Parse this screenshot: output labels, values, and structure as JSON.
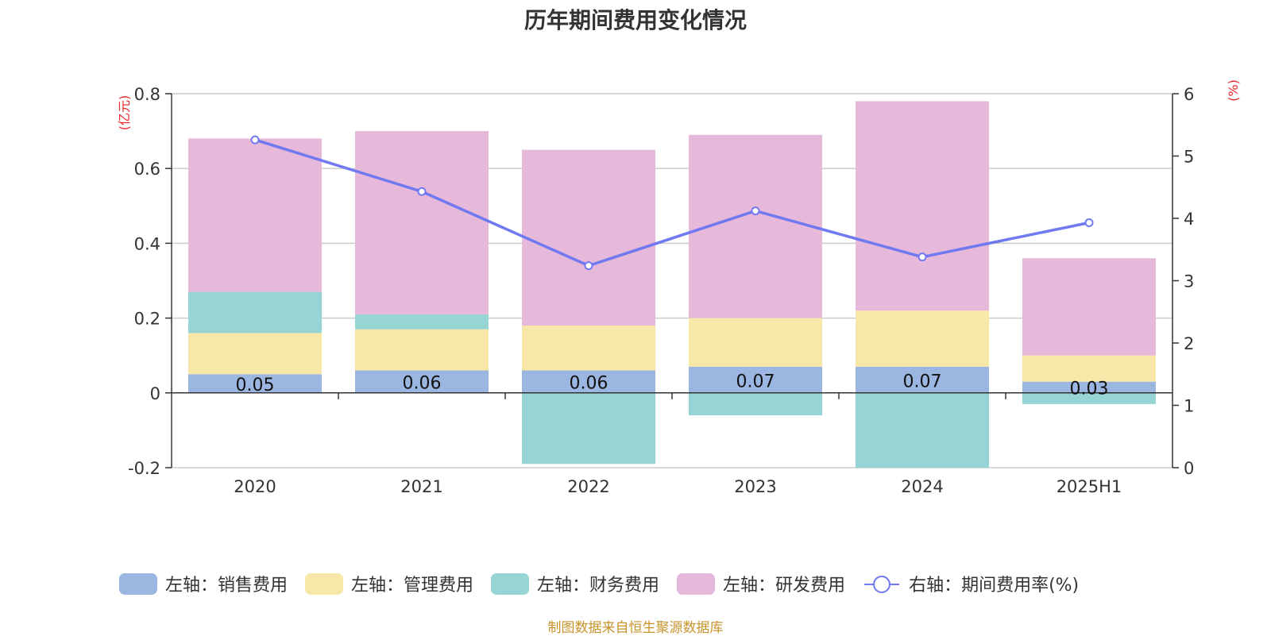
{
  "chart_data": {
    "type": "bar",
    "title": "历年期间费用变化情况",
    "categories": [
      "2020",
      "2021",
      "2022",
      "2023",
      "2024",
      "2025H1"
    ],
    "left_axis": {
      "unit": "(亿元)",
      "ylim": [
        -0.2,
        0.8
      ],
      "ticks": [
        0.8,
        0.6,
        0.4,
        0.2,
        0,
        -0.2
      ],
      "tick_labels": [
        "0.8",
        "0.6",
        "0.4",
        "0.2",
        "0",
        "-0.2"
      ]
    },
    "right_axis": {
      "unit": "(%)",
      "ylim": [
        0,
        6
      ],
      "ticks": [
        6,
        5,
        4,
        3,
        2,
        1,
        0
      ],
      "tick_labels": [
        "6",
        "5",
        "4",
        "3",
        "2",
        "1",
        "0"
      ]
    },
    "stacked": true,
    "grid": true,
    "legend_position": "bottom",
    "series": [
      {
        "name": "左轴：销售费用",
        "kind": "bar",
        "axis": "left",
        "color": "#9bb6e0",
        "values": [
          0.05,
          0.06,
          0.06,
          0.07,
          0.07,
          0.03
        ],
        "labels": [
          "0.05",
          "0.06",
          "0.06",
          "0.07",
          "0.07",
          "0.03"
        ]
      },
      {
        "name": "左轴：管理费用",
        "kind": "bar",
        "axis": "left",
        "color": "#f7e7a8",
        "values": [
          0.11,
          0.11,
          0.12,
          0.13,
          0.15,
          0.07
        ]
      },
      {
        "name": "左轴：财务费用",
        "kind": "bar",
        "axis": "left",
        "color": "#97d4d4",
        "values": [
          0.11,
          0.04,
          -0.19,
          -0.06,
          -0.2,
          -0.03
        ]
      },
      {
        "name": "左轴：研发费用",
        "kind": "bar",
        "axis": "left",
        "color": "#e6b8d9",
        "values": [
          0.41,
          0.49,
          0.47,
          0.49,
          0.56,
          0.26
        ]
      },
      {
        "name": "右轴：期间费用率(%)",
        "kind": "line",
        "axis": "right",
        "color": "#7079f0",
        "values": [
          5.26,
          4.43,
          3.24,
          4.12,
          3.38,
          3.93
        ]
      }
    ]
  },
  "source_note": "制图数据来自恒生聚源数据库"
}
